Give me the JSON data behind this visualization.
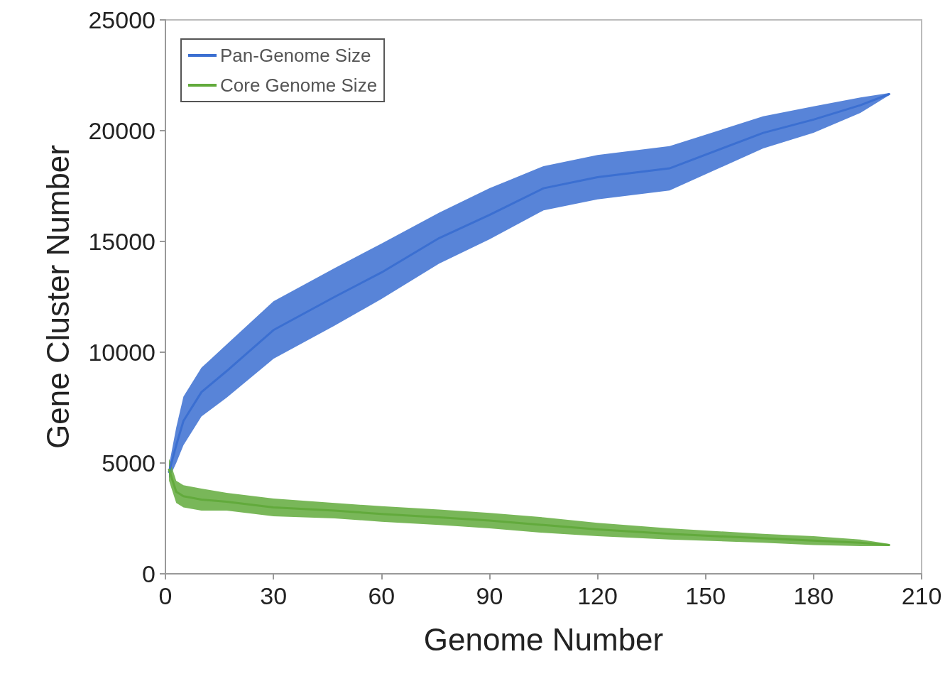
{
  "chart_data": {
    "type": "line",
    "xlabel": "Genome Number",
    "ylabel": "Gene Cluster Number",
    "xlim": [
      0,
      210
    ],
    "xticks": [
      0,
      30,
      60,
      90,
      120,
      150,
      180,
      210
    ],
    "ylim": [
      0,
      25000
    ],
    "yticks": [
      0,
      5000,
      10000,
      15000,
      20000,
      25000
    ],
    "legend": "top left",
    "marker": "none",
    "line_style": "solid",
    "x": [
      1,
      3,
      5,
      10,
      17,
      30,
      47,
      60,
      76,
      90,
      105,
      120,
      140,
      166,
      180,
      193,
      201
    ],
    "series": [
      {
        "name": "Pan-Genome Size",
        "color": "#3b6fd1",
        "values": [
          4600,
          5800,
          6900,
          8200,
          9150,
          11000,
          12500,
          13600,
          15150,
          16200,
          17400,
          17900,
          18300,
          19900,
          20500,
          21150,
          21650
        ],
        "lower": [
          4300,
          5000,
          5800,
          7100,
          7950,
          9700,
          11200,
          12400,
          14000,
          15100,
          16400,
          16900,
          17300,
          19200,
          19900,
          20800,
          21600
        ],
        "upper": [
          4900,
          6600,
          8000,
          9300,
          10350,
          12300,
          13800,
          14900,
          16300,
          17400,
          18400,
          18900,
          19300,
          20650,
          21100,
          21500,
          21700
        ]
      },
      {
        "name": "Core Genome Size",
        "color": "#62aa3c",
        "values": [
          4700,
          3700,
          3500,
          3350,
          3250,
          3000,
          2850,
          2700,
          2550,
          2400,
          2200,
          2000,
          1800,
          1600,
          1500,
          1400,
          1300
        ],
        "lower": [
          4200,
          3200,
          3000,
          2850,
          2850,
          2600,
          2500,
          2350,
          2200,
          2050,
          1850,
          1700,
          1550,
          1400,
          1300,
          1250,
          1250
        ],
        "upper": [
          5200,
          4200,
          4000,
          3850,
          3650,
          3400,
          3200,
          3050,
          2900,
          2750,
          2550,
          2300,
          2050,
          1800,
          1700,
          1550,
          1350
        ]
      }
    ]
  }
}
